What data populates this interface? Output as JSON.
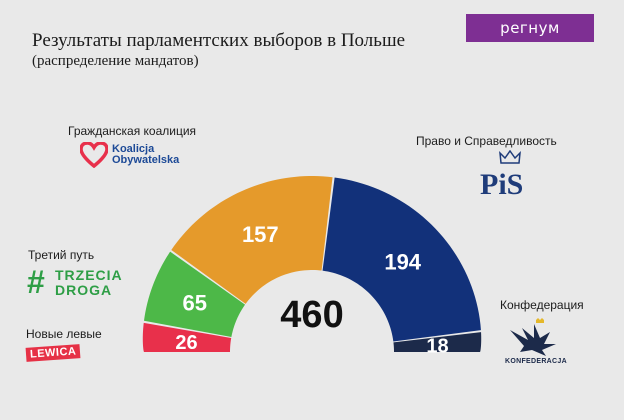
{
  "brand": {
    "logo_text": "регнум"
  },
  "chart_data": {
    "type": "pie",
    "title": "Результаты парламентских выборов в Польше",
    "subtitle": "(распределение мандатов)",
    "total": 460,
    "series": [
      {
        "name": "Новые левые",
        "value": 26,
        "color": "#e8304b",
        "logo": "LEWICA"
      },
      {
        "name": "Третий путь",
        "value": 65,
        "color": "#4db848",
        "logo_hash": "#",
        "logo_lines": [
          "TRZECIA",
          "DROGA"
        ]
      },
      {
        "name": "Гражданская коалиция",
        "value": 157,
        "color": "#e59a2b",
        "logo_lines": [
          "Koalicja",
          "Obywatelska"
        ]
      },
      {
        "name": "Право и Справедливость",
        "value": 194,
        "color": "#12317a",
        "logo": "PiS"
      },
      {
        "name": "Конфедерация",
        "value": 18,
        "color": "#1c2a4a",
        "logo": "KONFEDERACJA"
      }
    ]
  }
}
